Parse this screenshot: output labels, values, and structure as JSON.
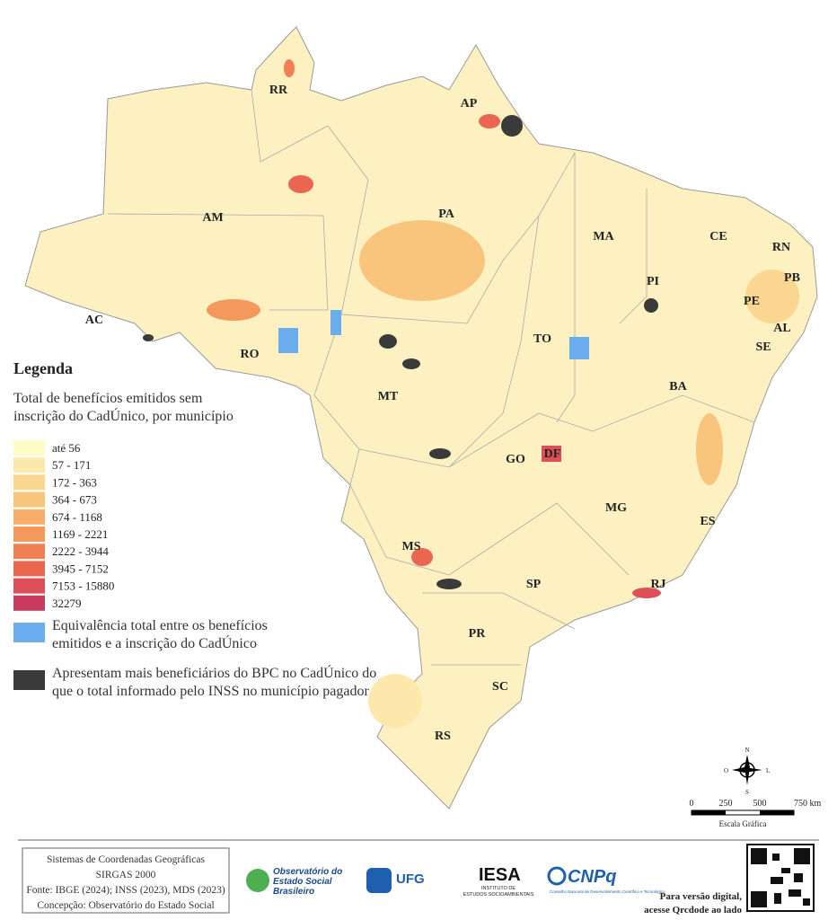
{
  "map": {
    "states": [
      "RR",
      "AP",
      "AM",
      "PA",
      "MA",
      "CE",
      "RN",
      "PI",
      "PB",
      "PE",
      "AL",
      "SE",
      "AC",
      "RO",
      "TO",
      "MT",
      "BA",
      "GO",
      "DF",
      "MG",
      "ES",
      "MS",
      "SP",
      "RJ",
      "PR",
      "SC",
      "RS"
    ],
    "legend": {
      "title": "Legenda",
      "subtitle": [
        "Total de benefícios emitidos sem",
        "inscrição do CadÚnico, por município"
      ],
      "classes": [
        {
          "label": "até 56",
          "color": "#fffbc6"
        },
        {
          "label": "57 - 171",
          "color": "#fde8ac"
        },
        {
          "label": "172 - 363",
          "color": "#fbd690"
        },
        {
          "label": "364 - 673",
          "color": "#f9c47c"
        },
        {
          "label": "674 - 1168",
          "color": "#f7ae6a"
        },
        {
          "label": "1169 - 2221",
          "color": "#f4985c"
        },
        {
          "label": "2222 - 3944",
          "color": "#f08052"
        },
        {
          "label": "3945 - 7152",
          "color": "#ea6650"
        },
        {
          "label": "7153 - 15880",
          "color": "#de5058"
        },
        {
          "label": "32279",
          "color": "#c83a5e"
        }
      ],
      "equivalence": {
        "lines": [
          "Equivalência total entre os benefícios",
          "emitidos e a inscrição do CadÚnico"
        ],
        "color": "#6aaef0"
      },
      "excess": {
        "lines": [
          "Apresentam mais beneficiários do BPC no CadÚnico do",
          "que o total informado pelo INSS no município pagador"
        ],
        "color": "#3a3a3a"
      }
    },
    "scale": {
      "ticks": [
        "0",
        "250",
        "500",
        "750 km"
      ],
      "label": "Escala Gráfica"
    },
    "compass": [
      "N",
      "S",
      "L",
      "O"
    ]
  },
  "footer": {
    "credits": [
      "Sistemas de Coordenadas Geográficas",
      "SIRGAS 2000",
      "Fonte: IBGE (2024); INSS (2023), MDS (2023)",
      "Concepção: Observatório do Estado Social"
    ],
    "logos": {
      "observatorio": [
        "Observatório do",
        "Estado Social",
        "Brasileiro"
      ],
      "ufg": "UFG",
      "iesa": "IESA",
      "iesa_sub": [
        "INSTITUTO DE",
        "ESTUDOS SOCIOAMBIENTAIS"
      ],
      "cnpq": "CNPq",
      "cnpq_sub": "Conselho Nacional de Desenvolvimento Científico e Tecnológico"
    },
    "qr_note": [
      "Para versão digital,",
      "acesse Qrcdode ao lado"
    ]
  }
}
